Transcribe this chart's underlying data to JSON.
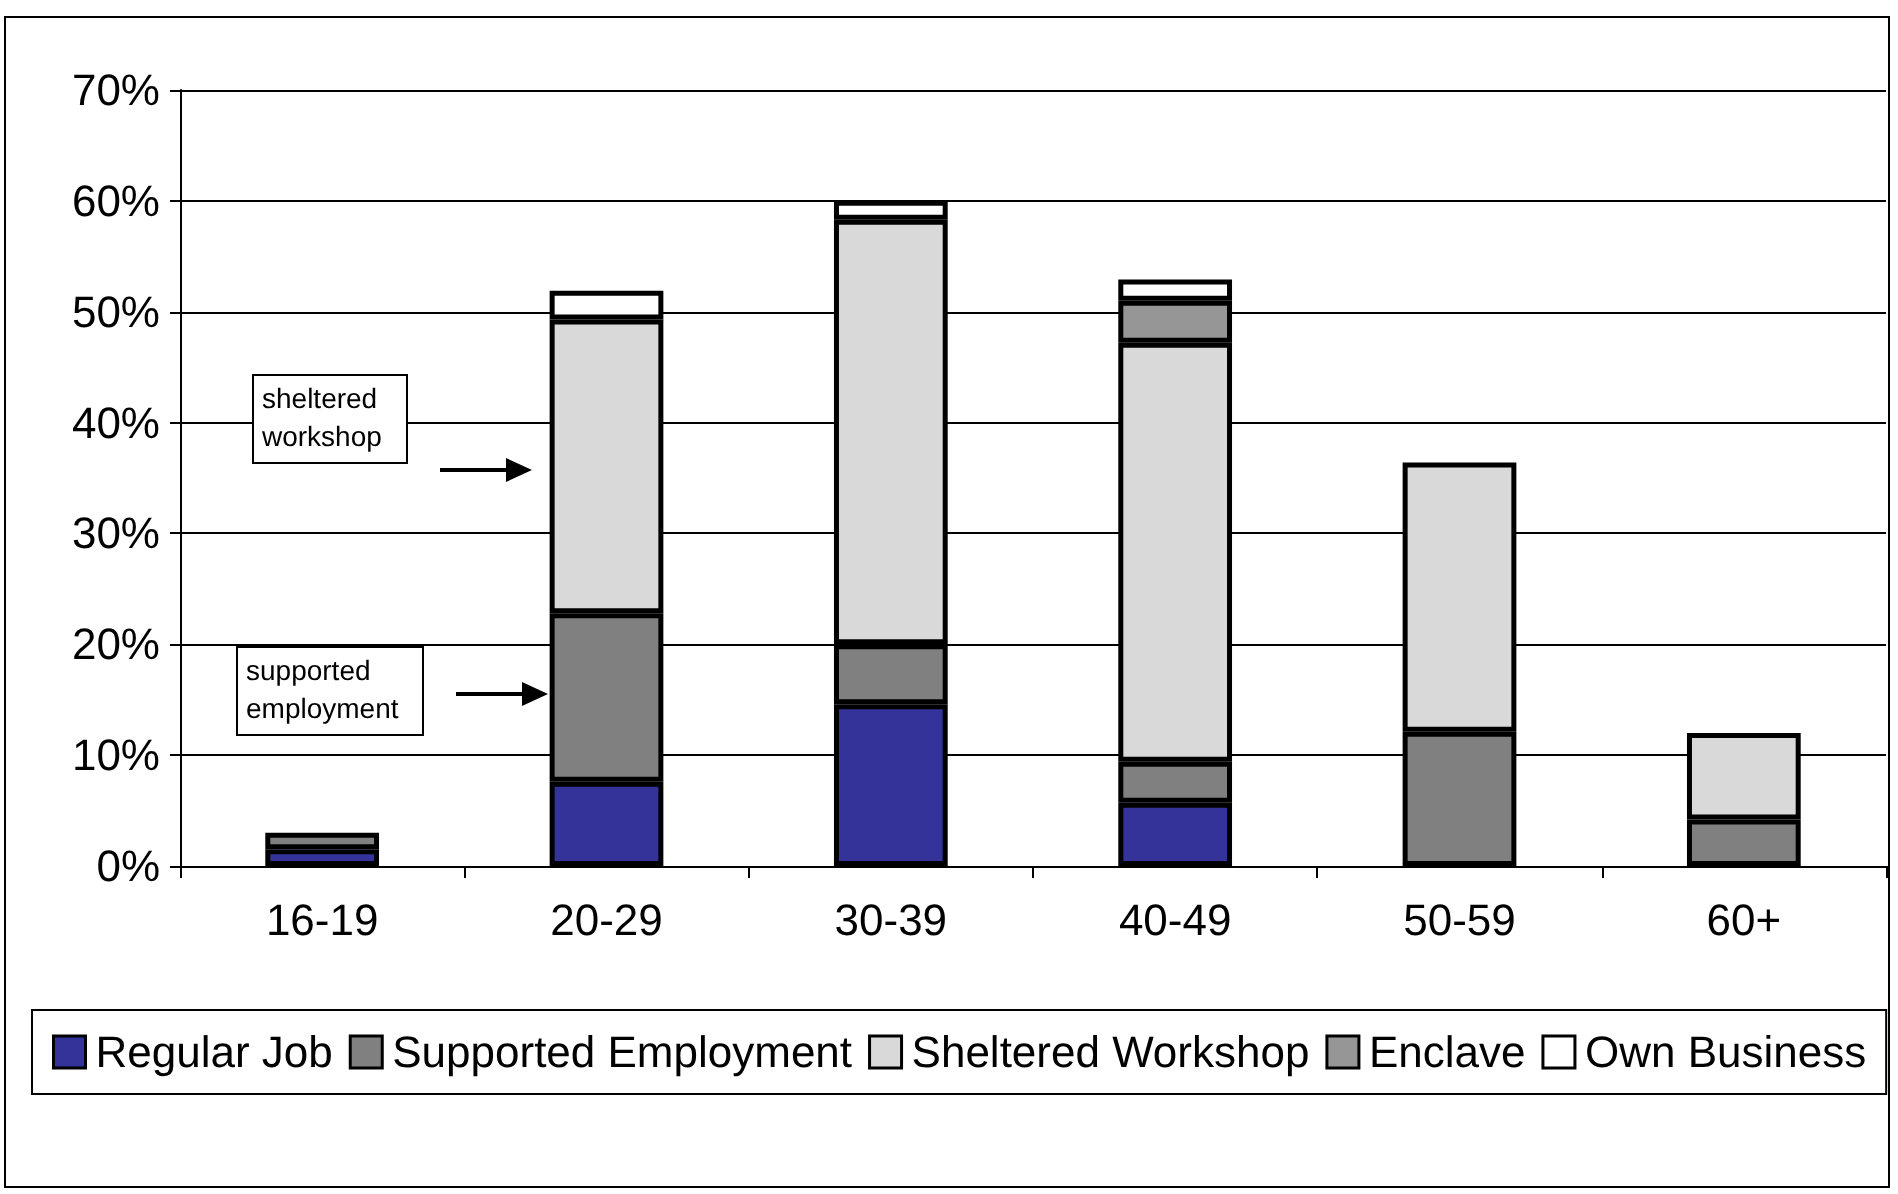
{
  "chart_data": {
    "type": "bar",
    "stacked": true,
    "categories": [
      "16-19",
      "20-29",
      "30-39",
      "40-49",
      "50-59",
      "60+"
    ],
    "series": [
      {
        "name": "Regular Job",
        "color": "#333399",
        "values": [
          1.5,
          7.6,
          14.6,
          5.7,
          null,
          null
        ]
      },
      {
        "name": "Supported Employment",
        "color": "#808080",
        "values": [
          1.5,
          15.2,
          5.4,
          3.7,
          12.1,
          4.2
        ]
      },
      {
        "name": "Sheltered Workshop",
        "color": "#d9d9d9",
        "values": [
          null,
          26.5,
          38.3,
          37.8,
          24.3,
          7.8
        ]
      },
      {
        "name": "Enclave",
        "color": "#969696",
        "values": [
          null,
          null,
          null,
          3.8,
          null,
          null
        ]
      },
      {
        "name": "Own Business",
        "color": "#ffffff",
        "values": [
          null,
          2.6,
          1.7,
          1.9,
          null,
          null
        ]
      }
    ],
    "ylim": [
      0,
      70
    ],
    "yticks": [
      {
        "value": 0,
        "label": "0%"
      },
      {
        "value": 10,
        "label": "10%"
      },
      {
        "value": 20,
        "label": "20%"
      },
      {
        "value": 30,
        "label": "30%"
      },
      {
        "value": 40,
        "label": "40%"
      },
      {
        "value": 50,
        "label": "50%"
      },
      {
        "value": 60,
        "label": "60%"
      },
      {
        "value": 70,
        "label": "70%"
      }
    ],
    "grid": "y",
    "legend": "bottom",
    "annotations": [
      "sheltered\nworkshop",
      "supported\nemployment"
    ]
  }
}
